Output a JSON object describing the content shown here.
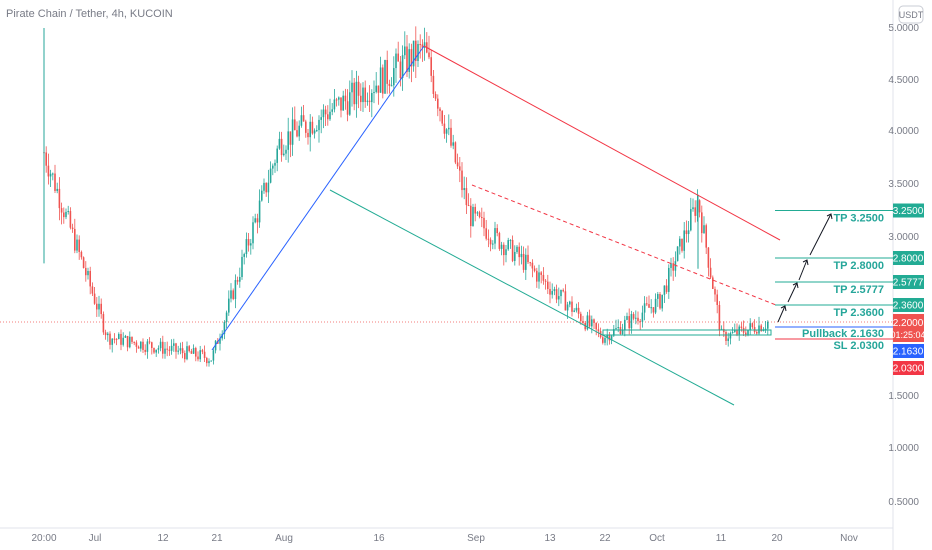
{
  "header": {
    "title": "Pirate Chain / Tether, 4h, KUCOIN",
    "currency_button": "USDT"
  },
  "colors": {
    "up": "#26a69a",
    "down": "#ef5350",
    "blue": "#2962ff",
    "red": "#f23645",
    "green": "#22ab94"
  },
  "chart_data": {
    "type": "candlestick",
    "symbol": "Pirate Chain / Tether",
    "timeframe": "4h",
    "exchange": "KUCOIN",
    "ylim": [
      0.3,
      5.1
    ],
    "y_ticks": [
      "5.0000",
      "4.5000",
      "4.0000",
      "3.5000",
      "3.0000",
      "1.5000",
      "1.0000",
      "0.5000"
    ],
    "x_ticks": [
      "20:00",
      "Jul",
      "12",
      "21",
      "Aug",
      "16",
      "Sep",
      "13",
      "22",
      "Oct",
      "11",
      "20",
      "Nov"
    ],
    "price_path": [
      {
        "t": "20:00",
        "price": 3.8
      },
      {
        "t": "Jul",
        "price": 2.05
      },
      {
        "t": "12",
        "price": 1.95
      },
      {
        "t": "21",
        "price": 1.85
      },
      {
        "t": "Aug",
        "price": 3.9
      },
      {
        "t": "16",
        "price": 4.5
      },
      {
        "t": "Aug 24",
        "price": 4.8
      },
      {
        "t": "Sep",
        "price": 3.2
      },
      {
        "t": "13",
        "price": 2.8
      },
      {
        "t": "22",
        "price": 2.05
      },
      {
        "t": "Oct",
        "price": 2.4
      },
      {
        "t": "Oct 8",
        "price": 3.35
      },
      {
        "t": "11",
        "price": 2.05
      },
      {
        "t": "20",
        "price": 2.2
      }
    ],
    "current_price": "2.2000",
    "countdown": "01:25:04",
    "levels": [
      {
        "name": "TP",
        "value": "3.2500",
        "label": "TP 3.2500"
      },
      {
        "name": "TP",
        "value": "2.8000",
        "label": "TP 2.8000"
      },
      {
        "name": "TP",
        "value": "2.5777",
        "label": "TP 2.5777"
      },
      {
        "name": "TP",
        "value": "2.3600",
        "label": "TP 2.3600"
      },
      {
        "name": "Pullback",
        "value": "2.1630",
        "label": "Pullback 2.1630"
      },
      {
        "name": "SL",
        "value": "2.0300",
        "label": "SL 2.0300"
      }
    ]
  }
}
